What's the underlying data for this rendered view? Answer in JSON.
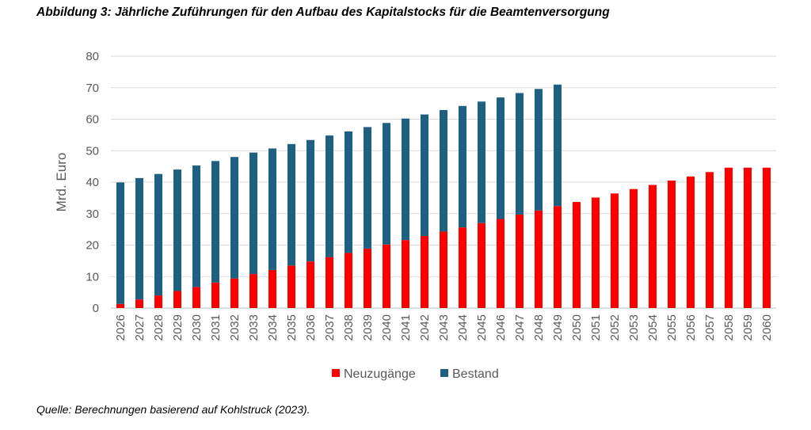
{
  "title": "Abbildung 3: Jährliche Zuführungen für den Aufbau des Kapitalstocks für die Beamtenversorgung",
  "source": "Quelle: Berechnungen basierend auf Kohlstruck (2023).",
  "chart_data": {
    "type": "bar",
    "stacked": true,
    "ylabel": "Mrd. Euro",
    "xlabel": "",
    "ylim": [
      0,
      80
    ],
    "yticks": [
      0,
      10,
      20,
      30,
      40,
      50,
      60,
      70,
      80
    ],
    "grid": true,
    "legend_position": "bottom",
    "categories": [
      "2026",
      "2027",
      "2028",
      "2029",
      "2030",
      "2031",
      "2032",
      "2033",
      "2034",
      "2035",
      "2036",
      "2037",
      "2038",
      "2039",
      "2040",
      "2041",
      "2042",
      "2043",
      "2044",
      "2045",
      "2046",
      "2047",
      "2048",
      "2049",
      "2050",
      "2051",
      "2052",
      "2053",
      "2054",
      "2055",
      "2056",
      "2057",
      "2058",
      "2059",
      "2060"
    ],
    "series": [
      {
        "name": "Neuzugänge",
        "color": "#ff0000",
        "values": [
          1.3,
          2.7,
          4.0,
          5.4,
          6.7,
          8.1,
          9.4,
          10.8,
          12.1,
          13.5,
          14.8,
          16.2,
          17.5,
          18.9,
          20.2,
          21.6,
          22.9,
          24.3,
          25.6,
          27.0,
          28.3,
          29.7,
          31.0,
          32.4,
          33.7,
          35.1,
          36.4,
          37.8,
          39.1,
          40.5,
          41.8,
          43.2,
          44.6,
          44.6,
          44.6
        ]
      },
      {
        "name": "Bestand",
        "color": "#1d6082",
        "values": [
          38.6,
          38.6,
          38.6,
          38.6,
          38.6,
          38.6,
          38.6,
          38.6,
          38.6,
          38.6,
          38.6,
          38.6,
          38.6,
          38.6,
          38.6,
          38.6,
          38.6,
          38.6,
          38.6,
          38.6,
          38.6,
          38.6,
          38.6,
          38.6,
          0,
          0,
          0,
          0,
          0,
          0,
          0,
          0,
          0,
          0,
          0
        ]
      }
    ]
  }
}
